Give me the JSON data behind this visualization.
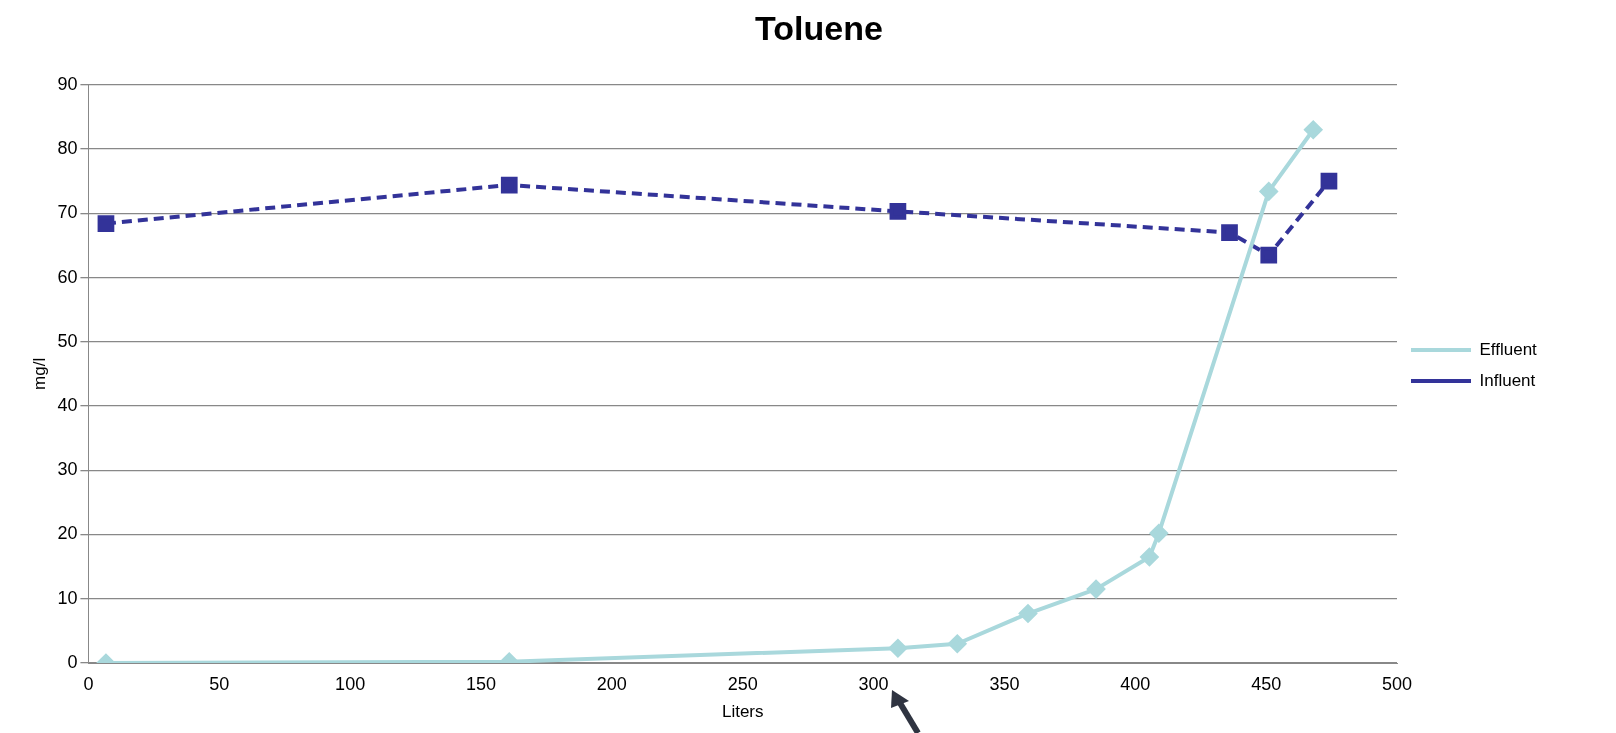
{
  "chart_data": {
    "type": "line",
    "title": "Toluene",
    "xlabel": "Liters",
    "ylabel": "mg/l",
    "xlim": [
      0,
      500
    ],
    "xticks": [
      0,
      50,
      100,
      150,
      200,
      250,
      300,
      350,
      400,
      450,
      500
    ],
    "ylim": [
      0,
      90
    ],
    "yticks": [
      0,
      10,
      20,
      30,
      40,
      50,
      60,
      70,
      80,
      90
    ],
    "grid": "y",
    "legend": "right",
    "series": [
      {
        "name": "Effluent",
        "color": "#a9d8dc",
        "marker": "diamond",
        "line_style": "solid",
        "x": [
          6.7,
          160.8,
          309.3,
          332,
          359,
          385,
          405.4,
          409,
          451,
          468
        ],
        "values": [
          0,
          0.2,
          2.3,
          3,
          7.7,
          11.5,
          16.5,
          20.2,
          73.4,
          83
        ]
      },
      {
        "name": "Influent",
        "color": "#333399",
        "marker": "square",
        "line_style": "dashed",
        "x": [
          6.7,
          160.8,
          309.3,
          436,
          451,
          474
        ],
        "values": [
          68.4,
          74.4,
          70.3,
          67,
          63.5,
          75
        ]
      }
    ]
  }
}
